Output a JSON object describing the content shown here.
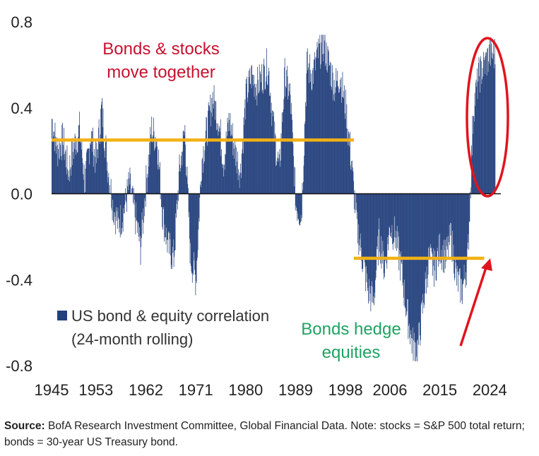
{
  "chart_data": {
    "type": "bar",
    "series": [
      {
        "name": "US bond & equity correlation (24-month rolling)",
        "color": "#23407c",
        "summary_note": "Monthly bars approximated from the visible shape; values below are annual control points interpolated by the drawing script.",
        "x": [
          1945,
          1946,
          1947,
          1948,
          1949,
          1950,
          1951,
          1952,
          1953,
          1954,
          1955,
          1956,
          1957,
          1958,
          1959,
          1960,
          1961,
          1962,
          1963,
          1964,
          1965,
          1966,
          1967,
          1968,
          1969,
          1970,
          1971,
          1972,
          1973,
          1974,
          1975,
          1976,
          1977,
          1978,
          1979,
          1980,
          1981,
          1982,
          1983,
          1984,
          1985,
          1986,
          1987,
          1988,
          1989,
          1990,
          1991,
          1992,
          1993,
          1994,
          1995,
          1996,
          1997,
          1998,
          1999,
          2000,
          2001,
          2002,
          2003,
          2004,
          2005,
          2006,
          2007,
          2008,
          2009,
          2010,
          2011,
          2012,
          2013,
          2014,
          2015,
          2016,
          2017,
          2018,
          2019,
          2020,
          2021,
          2022,
          2023,
          2024
        ],
        "values": [
          0.35,
          0.2,
          0.25,
          0.1,
          0.22,
          0.3,
          0.05,
          0.28,
          0.15,
          0.4,
          0.15,
          -0.05,
          -0.15,
          -0.08,
          0.05,
          -0.1,
          -0.25,
          0.05,
          0.3,
          0.25,
          -0.1,
          -0.25,
          -0.3,
          0.1,
          0.3,
          -0.3,
          -0.4,
          0.15,
          0.3,
          0.45,
          0.35,
          0.15,
          0.35,
          0.2,
          0.1,
          0.45,
          0.55,
          0.5,
          0.55,
          0.6,
          0.3,
          0.1,
          0.55,
          0.45,
          -0.05,
          -0.1,
          0.6,
          0.55,
          0.65,
          0.7,
          0.6,
          0.5,
          0.55,
          0.4,
          0.15,
          -0.15,
          -0.3,
          -0.45,
          -0.5,
          -0.2,
          -0.35,
          -0.15,
          -0.2,
          -0.35,
          -0.55,
          -0.7,
          -0.72,
          -0.5,
          -0.3,
          -0.35,
          -0.25,
          -0.3,
          -0.2,
          -0.4,
          -0.45,
          -0.3,
          0.4,
          0.55,
          0.6,
          0.65
        ]
      }
    ],
    "xlim": [
      1945,
      2026
    ],
    "ylim": [
      -0.8,
      0.8
    ],
    "xticks": [
      "1945",
      "1953",
      "1962",
      "1971",
      "1980",
      "1989",
      "1998",
      "2006",
      "2015",
      "2024"
    ],
    "yticks": [
      "0.8",
      "0.4",
      "0.0",
      "-0.4",
      "-0.8"
    ],
    "reference_lines": [
      {
        "x_start": 1945,
        "x_end": 1999.5,
        "y": 0.25,
        "color": "#f2b114"
      },
      {
        "x_start": 1999.5,
        "x_end": 2023,
        "y": -0.3,
        "color": "#f2b114"
      }
    ],
    "annotations": {
      "top_text_line1": "Bonds & stocks",
      "top_text_line2": "move together",
      "top_color": "#c8102e",
      "bottom_text_line1": "Bonds hedge",
      "bottom_text_line2": "equities",
      "bottom_color": "#1fa363",
      "highlight_color": "#e0141e"
    },
    "legend": {
      "label_line1": "US bond & equity correlation",
      "label_line2": "(24-month rolling)",
      "placement": "bottom-left"
    },
    "grid": false
  },
  "source": {
    "label": "Source:",
    "text": " BofA Research Investment Committee, Global Financial Data. Note: stocks = S&P 500 total return; bonds = 30-year US Treasury bond."
  }
}
